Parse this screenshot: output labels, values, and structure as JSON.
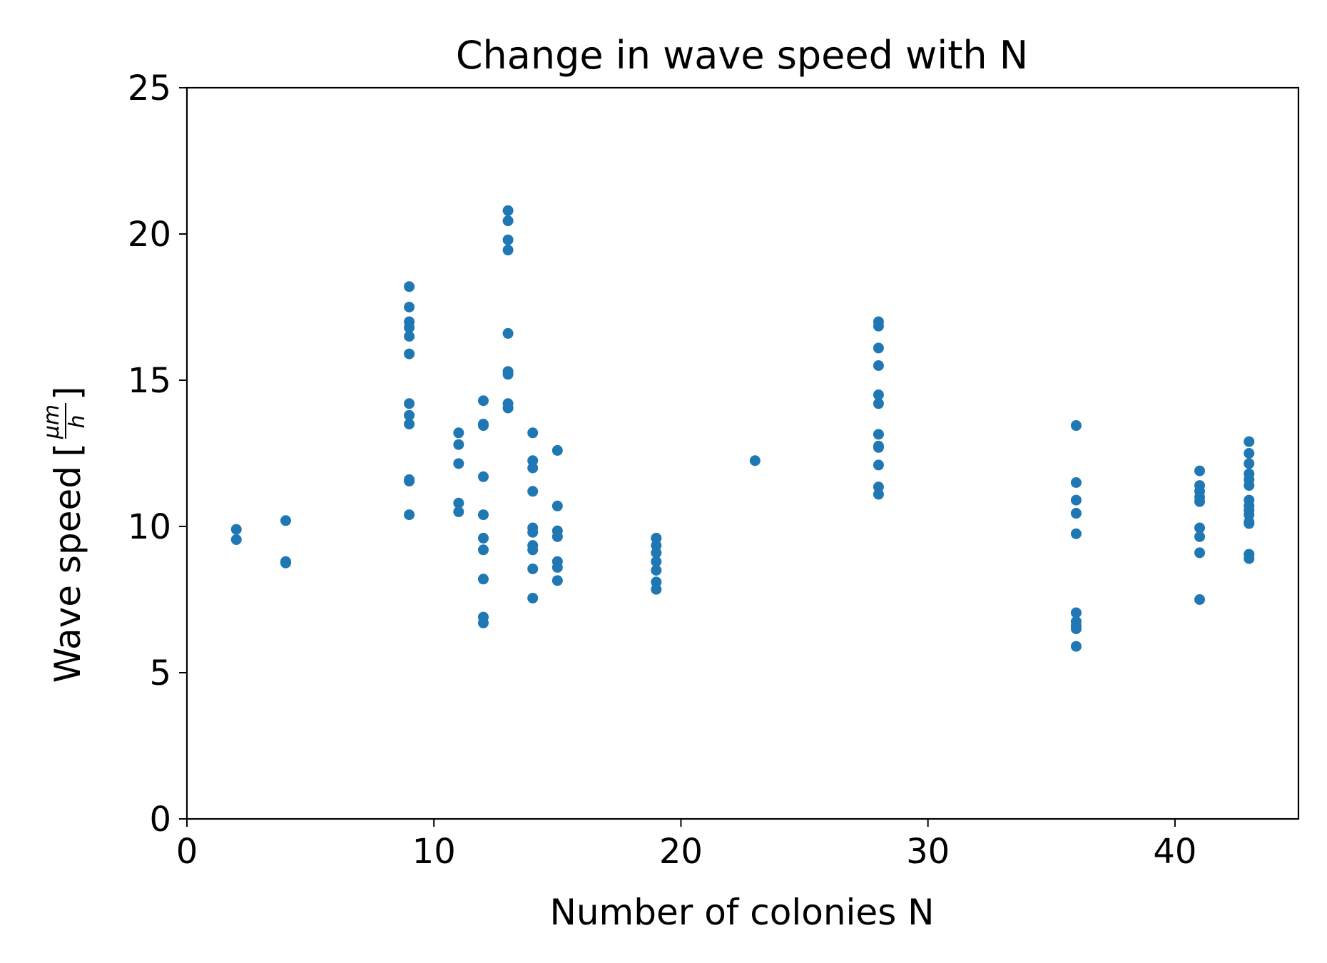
{
  "chart_data": {
    "type": "scatter",
    "title": "Change in wave speed with N",
    "xlabel": "Number of colonies N",
    "ylabel": "Wave speed",
    "ylabel_unit_numerator": "μm",
    "ylabel_unit_denominator": "h",
    "xlim": [
      0,
      45
    ],
    "ylim": [
      0,
      25
    ],
    "xticks": [
      0,
      10,
      20,
      30,
      40
    ],
    "yticks": [
      0,
      5,
      10,
      15,
      20,
      25
    ],
    "grid": false,
    "legend": "none",
    "series": [
      {
        "color": "#1f77b4",
        "points": [
          [
            2,
            9.9
          ],
          [
            2,
            9.55
          ],
          [
            4,
            10.2
          ],
          [
            4,
            8.8
          ],
          [
            4,
            8.75
          ],
          [
            9,
            18.2
          ],
          [
            9,
            17.5
          ],
          [
            9,
            17.0
          ],
          [
            9,
            16.8
          ],
          [
            9,
            16.5
          ],
          [
            9,
            15.9
          ],
          [
            9,
            14.2
          ],
          [
            9,
            13.8
          ],
          [
            9,
            13.5
          ],
          [
            9,
            11.6
          ],
          [
            9,
            11.55
          ],
          [
            9,
            10.4
          ],
          [
            11,
            13.2
          ],
          [
            11,
            12.8
          ],
          [
            11,
            12.15
          ],
          [
            11,
            10.8
          ],
          [
            11,
            10.5
          ],
          [
            12,
            14.3
          ],
          [
            12,
            13.5
          ],
          [
            12,
            13.45
          ],
          [
            12,
            11.7
          ],
          [
            12,
            10.4
          ],
          [
            12,
            9.6
          ],
          [
            12,
            9.2
          ],
          [
            12,
            8.2
          ],
          [
            12,
            6.9
          ],
          [
            12,
            6.7
          ],
          [
            13,
            20.8
          ],
          [
            13,
            20.45
          ],
          [
            13,
            19.8
          ],
          [
            13,
            19.45
          ],
          [
            13,
            16.6
          ],
          [
            13,
            15.3
          ],
          [
            13,
            15.2
          ],
          [
            13,
            14.2
          ],
          [
            13,
            14.05
          ],
          [
            14,
            13.2
          ],
          [
            14,
            12.25
          ],
          [
            14,
            12.0
          ],
          [
            14,
            11.2
          ],
          [
            14,
            9.95
          ],
          [
            14,
            9.8
          ],
          [
            14,
            9.35
          ],
          [
            14,
            9.2
          ],
          [
            14,
            8.55
          ],
          [
            14,
            7.55
          ],
          [
            15,
            12.6
          ],
          [
            15,
            10.7
          ],
          [
            15,
            9.85
          ],
          [
            15,
            9.65
          ],
          [
            15,
            8.8
          ],
          [
            15,
            8.6
          ],
          [
            15,
            8.15
          ],
          [
            19,
            9.6
          ],
          [
            19,
            9.35
          ],
          [
            19,
            9.1
          ],
          [
            19,
            8.8
          ],
          [
            19,
            8.5
          ],
          [
            19,
            8.1
          ],
          [
            19,
            7.85
          ],
          [
            23,
            12.25
          ],
          [
            28,
            17.0
          ],
          [
            28,
            16.85
          ],
          [
            28,
            16.1
          ],
          [
            28,
            15.5
          ],
          [
            28,
            14.5
          ],
          [
            28,
            14.2
          ],
          [
            28,
            13.15
          ],
          [
            28,
            12.75
          ],
          [
            28,
            12.7
          ],
          [
            28,
            12.1
          ],
          [
            28,
            11.35
          ],
          [
            28,
            11.1
          ],
          [
            36,
            13.45
          ],
          [
            36,
            11.5
          ],
          [
            36,
            10.9
          ],
          [
            36,
            10.45
          ],
          [
            36,
            9.75
          ],
          [
            36,
            7.05
          ],
          [
            36,
            6.75
          ],
          [
            36,
            6.6
          ],
          [
            36,
            6.5
          ],
          [
            36,
            5.9
          ],
          [
            41,
            11.9
          ],
          [
            41,
            11.4
          ],
          [
            41,
            11.2
          ],
          [
            41,
            11.0
          ],
          [
            41,
            10.85
          ],
          [
            41,
            9.95
          ],
          [
            41,
            9.65
          ],
          [
            41,
            9.1
          ],
          [
            41,
            7.5
          ],
          [
            43,
            12.9
          ],
          [
            43,
            12.5
          ],
          [
            43,
            12.15
          ],
          [
            43,
            11.8
          ],
          [
            43,
            11.6
          ],
          [
            43,
            11.4
          ],
          [
            43,
            10.9
          ],
          [
            43,
            10.7
          ],
          [
            43,
            10.55
          ],
          [
            43,
            10.4
          ],
          [
            43,
            10.15
          ],
          [
            43,
            10.1
          ],
          [
            43,
            9.05
          ],
          [
            43,
            8.9
          ]
        ]
      }
    ]
  }
}
